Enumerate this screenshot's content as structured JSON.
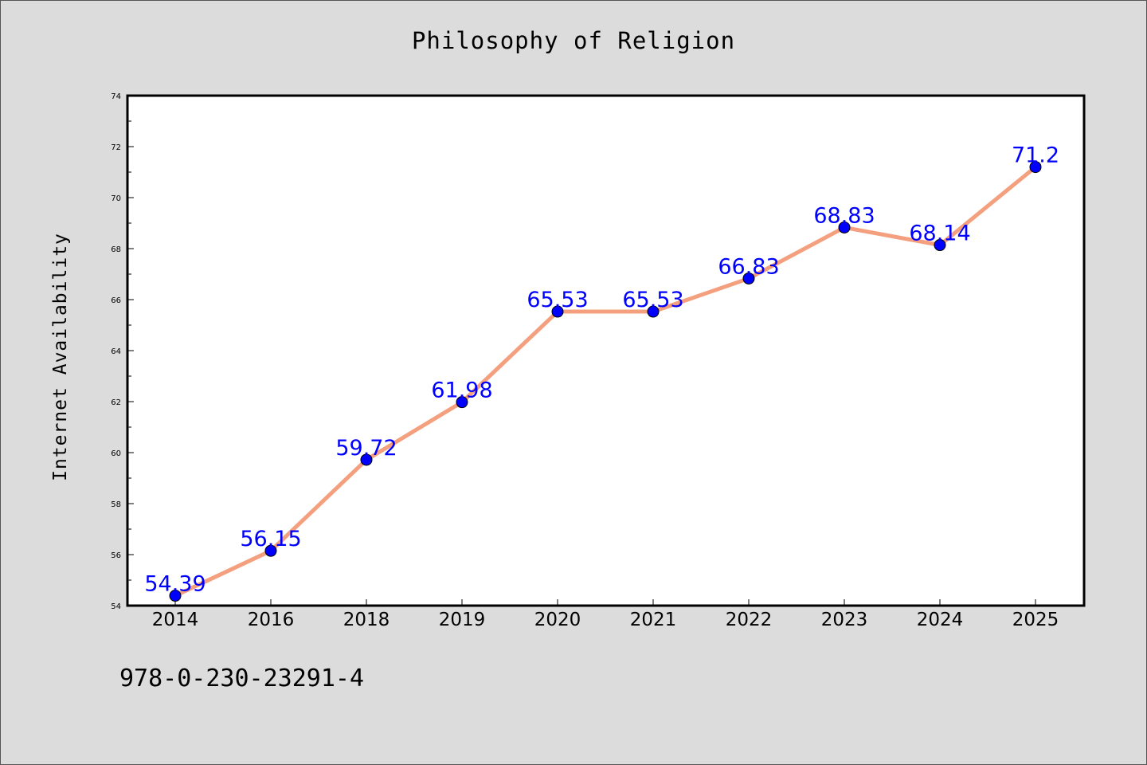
{
  "chart_data": {
    "type": "line",
    "title": "Philosophy of Religion",
    "xlabel": "",
    "ylabel": "Internet Availability",
    "categories": [
      "2014",
      "2016",
      "2018",
      "2019",
      "2020",
      "2021",
      "2022",
      "2023",
      "2024",
      "2025"
    ],
    "series": [
      {
        "values": [
          54.39,
          56.15,
          59.72,
          61.98,
          65.53,
          65.53,
          66.83,
          68.83,
          68.14,
          71.2
        ]
      }
    ],
    "data_labels": [
      "54.39",
      "56.15",
      "59.72",
      "61.98",
      "65.53",
      "65.53",
      "66.83",
      "68.83",
      "68.14",
      "71.2"
    ],
    "ylim": [
      54,
      74
    ],
    "yticks": [
      "54",
      "56",
      "58",
      "60",
      "62",
      "64",
      "66",
      "68",
      "70",
      "72",
      "74"
    ],
    "grid": false,
    "legend": "none",
    "colors": {
      "line": "#f4a07f",
      "marker": "#0000ff",
      "label": "#0000ff",
      "background": "#dcdcdc",
      "plot_background": "#ffffff"
    }
  },
  "footer": {
    "code": "978-0-230-23291-4"
  }
}
